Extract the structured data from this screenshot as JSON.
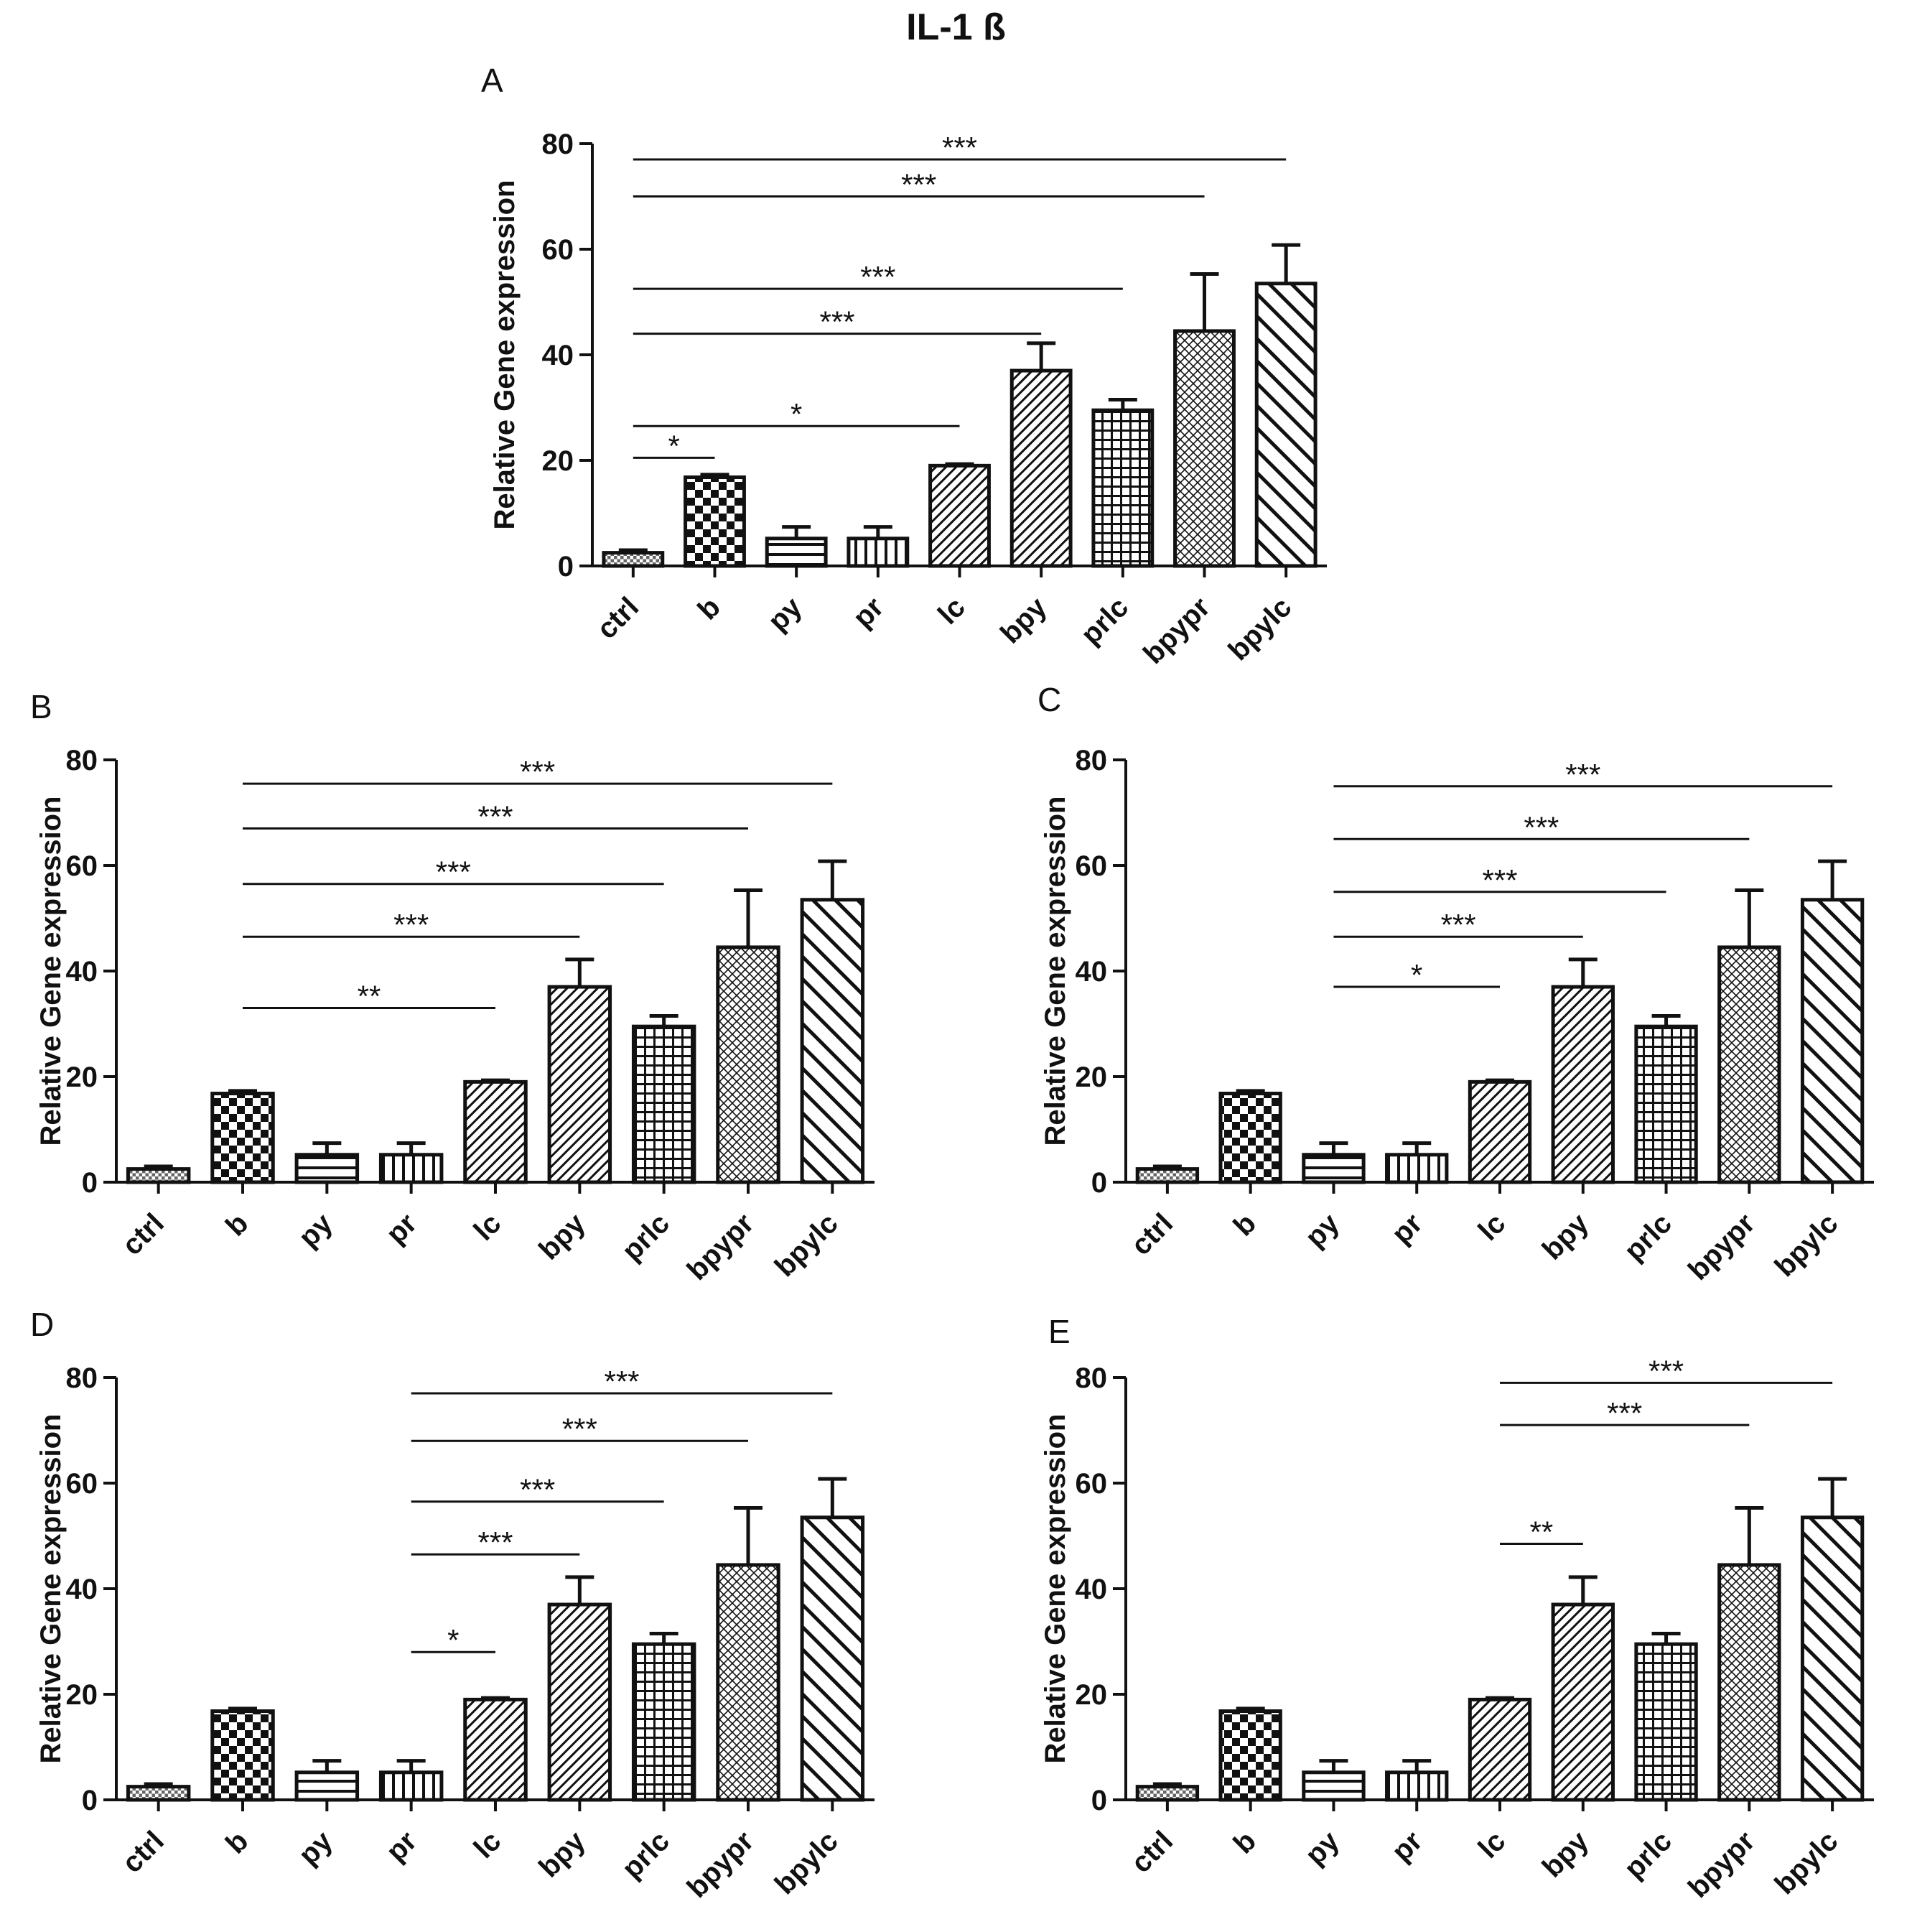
{
  "figure_title": "IL-1 ß",
  "chart_data": [
    {
      "panel": "A",
      "type": "bar",
      "title": "IL-1 ß",
      "ylabel": "Relative Gene expression",
      "xlabel": "",
      "ylim": [
        0,
        80
      ],
      "yticks": [
        0,
        20,
        40,
        60,
        80
      ],
      "categories": [
        "ctrl",
        "b",
        "py",
        "pr",
        "lc",
        "bpy",
        "prlc",
        "bpypr",
        "bpylc"
      ],
      "values": [
        2.5,
        16.8,
        5.2,
        5.2,
        19.0,
        37.0,
        29.5,
        44.5,
        53.5
      ],
      "errors": [
        0.5,
        0.5,
        2.2,
        2.2,
        0.3,
        5.2,
        2.0,
        10.8,
        7.3
      ],
      "patterns": [
        "dots",
        "checker",
        "hstripes",
        "vstripes",
        "diag-fine",
        "diag-fine",
        "grid",
        "crosshatch",
        "diag-wide"
      ],
      "significance": [
        {
          "from": "ctrl",
          "to": "bpylc",
          "label": "***",
          "y": 77
        },
        {
          "from": "ctrl",
          "to": "bpypr",
          "label": "***",
          "y": 70
        },
        {
          "from": "ctrl",
          "to": "prlc",
          "label": "***",
          "y": 52.5
        },
        {
          "from": "ctrl",
          "to": "bpy",
          "label": "***",
          "y": 44
        },
        {
          "from": "ctrl",
          "to": "lc",
          "label": "*",
          "y": 26.5
        },
        {
          "from": "ctrl",
          "to": "b",
          "label": "*",
          "y": 20.5
        }
      ]
    },
    {
      "panel": "B",
      "type": "bar",
      "ylabel": "Relative Gene expression",
      "xlabel": "",
      "ylim": [
        0,
        80
      ],
      "yticks": [
        0,
        20,
        40,
        60,
        80
      ],
      "categories": [
        "ctrl",
        "b",
        "py",
        "pr",
        "lc",
        "bpy",
        "prlc",
        "bpypr",
        "bpylc"
      ],
      "values": [
        2.5,
        16.8,
        5.2,
        5.2,
        19.0,
        37.0,
        29.5,
        44.5,
        53.5
      ],
      "errors": [
        0.5,
        0.5,
        2.2,
        2.2,
        0.3,
        5.2,
        2.0,
        10.8,
        7.3
      ],
      "patterns": [
        "dots",
        "checker",
        "hstripes",
        "vstripes",
        "diag-fine",
        "diag-fine",
        "grid",
        "crosshatch",
        "diag-wide"
      ],
      "significance": [
        {
          "from": "b",
          "to": "bpylc",
          "label": "***",
          "y": 75.5
        },
        {
          "from": "b",
          "to": "bpypr",
          "label": "***",
          "y": 67
        },
        {
          "from": "b",
          "to": "prlc",
          "label": "***",
          "y": 56.5
        },
        {
          "from": "b",
          "to": "bpy",
          "label": "***",
          "y": 46.5
        },
        {
          "from": "b",
          "to": "lc",
          "label": "**",
          "y": 33
        }
      ]
    },
    {
      "panel": "C",
      "type": "bar",
      "ylabel": "Relative Gene expression",
      "xlabel": "",
      "ylim": [
        0,
        80
      ],
      "yticks": [
        0,
        20,
        40,
        60,
        80
      ],
      "categories": [
        "ctrl",
        "b",
        "py",
        "pr",
        "lc",
        "bpy",
        "prlc",
        "bpypr",
        "bpylc"
      ],
      "values": [
        2.5,
        16.8,
        5.2,
        5.2,
        19.0,
        37.0,
        29.5,
        44.5,
        53.5
      ],
      "errors": [
        0.5,
        0.5,
        2.2,
        2.2,
        0.3,
        5.2,
        2.0,
        10.8,
        7.3
      ],
      "patterns": [
        "dots",
        "checker",
        "hstripes",
        "vstripes",
        "diag-fine",
        "diag-fine",
        "grid",
        "crosshatch",
        "diag-wide"
      ],
      "significance": [
        {
          "from": "py",
          "to": "bpylc",
          "label": "***",
          "y": 75
        },
        {
          "from": "py",
          "to": "bpypr",
          "label": "***",
          "y": 65
        },
        {
          "from": "py",
          "to": "prlc",
          "label": "***",
          "y": 55
        },
        {
          "from": "py",
          "to": "bpy",
          "label": "***",
          "y": 46.5
        },
        {
          "from": "py",
          "to": "lc",
          "label": "*",
          "y": 37
        }
      ]
    },
    {
      "panel": "D",
      "type": "bar",
      "ylabel": "Relative Gene expression",
      "xlabel": "",
      "ylim": [
        0,
        80
      ],
      "yticks": [
        0,
        20,
        40,
        60,
        80
      ],
      "categories": [
        "ctrl",
        "b",
        "py",
        "pr",
        "lc",
        "bpy",
        "prlc",
        "bpypr",
        "bpylc"
      ],
      "values": [
        2.5,
        16.8,
        5.2,
        5.2,
        19.0,
        37.0,
        29.5,
        44.5,
        53.5
      ],
      "errors": [
        0.5,
        0.5,
        2.2,
        2.2,
        0.3,
        5.2,
        2.0,
        10.8,
        7.3
      ],
      "patterns": [
        "dots",
        "checker",
        "hstripes",
        "vstripes",
        "diag-fine",
        "diag-fine",
        "grid",
        "crosshatch",
        "diag-wide"
      ],
      "significance": [
        {
          "from": "pr",
          "to": "bpylc",
          "label": "***",
          "y": 77
        },
        {
          "from": "pr",
          "to": "bpypr",
          "label": "***",
          "y": 68
        },
        {
          "from": "pr",
          "to": "prlc",
          "label": "***",
          "y": 56.5
        },
        {
          "from": "pr",
          "to": "bpy",
          "label": "***",
          "y": 46.5
        },
        {
          "from": "pr",
          "to": "lc",
          "label": "*",
          "y": 28
        }
      ]
    },
    {
      "panel": "E",
      "type": "bar",
      "ylabel": "Relative Gene expression",
      "xlabel": "",
      "ylim": [
        0,
        80
      ],
      "yticks": [
        0,
        20,
        40,
        60,
        80
      ],
      "categories": [
        "ctrl",
        "b",
        "py",
        "pr",
        "lc",
        "bpy",
        "prlc",
        "bpypr",
        "bpylc"
      ],
      "values": [
        2.5,
        16.8,
        5.2,
        5.2,
        19.0,
        37.0,
        29.5,
        44.5,
        53.5
      ],
      "errors": [
        0.5,
        0.5,
        2.2,
        2.2,
        0.3,
        5.2,
        2.0,
        10.8,
        7.3
      ],
      "patterns": [
        "dots",
        "checker",
        "hstripes",
        "vstripes",
        "diag-fine",
        "diag-fine",
        "grid",
        "crosshatch",
        "diag-wide"
      ],
      "significance": [
        {
          "from": "lc",
          "to": "bpylc",
          "label": "***",
          "y": 79
        },
        {
          "from": "lc",
          "to": "bpypr",
          "label": "***",
          "y": 71
        },
        {
          "from": "lc",
          "to": "bpy",
          "label": "**",
          "y": 48.5
        }
      ]
    }
  ]
}
